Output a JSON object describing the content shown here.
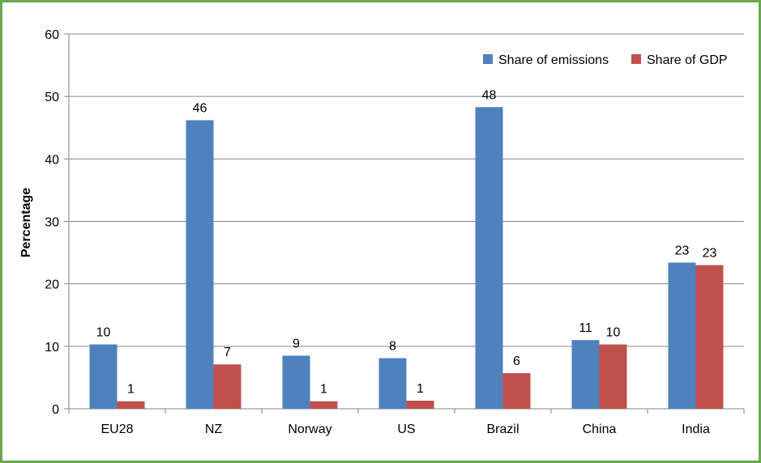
{
  "chart_data": {
    "type": "bar",
    "title": "",
    "xlabel": "",
    "ylabel": "Percentage",
    "ylim": [
      0,
      60
    ],
    "yticks": [
      "0",
      "10",
      "20",
      "30",
      "40",
      "50",
      "60"
    ],
    "grid": true,
    "legend_position": "top-right",
    "categories": [
      "EU28",
      "NZ",
      "Norway",
      "US",
      "Brazil",
      "China",
      "India"
    ],
    "series": [
      {
        "name": "Share of emissions",
        "color": "#4f81bd",
        "values": [
          10.3,
          46.2,
          8.5,
          8.1,
          48.3,
          11.0,
          23.4
        ],
        "labels": [
          "10",
          "46",
          "9",
          "8",
          "48",
          "11",
          "23"
        ]
      },
      {
        "name": "Share of GDP",
        "color": "#c0504d",
        "values": [
          1.2,
          7.1,
          1.2,
          1.3,
          5.7,
          10.3,
          23.0
        ],
        "labels": [
          "1",
          "7",
          "1",
          "1",
          "6",
          "10",
          "23"
        ]
      }
    ]
  }
}
